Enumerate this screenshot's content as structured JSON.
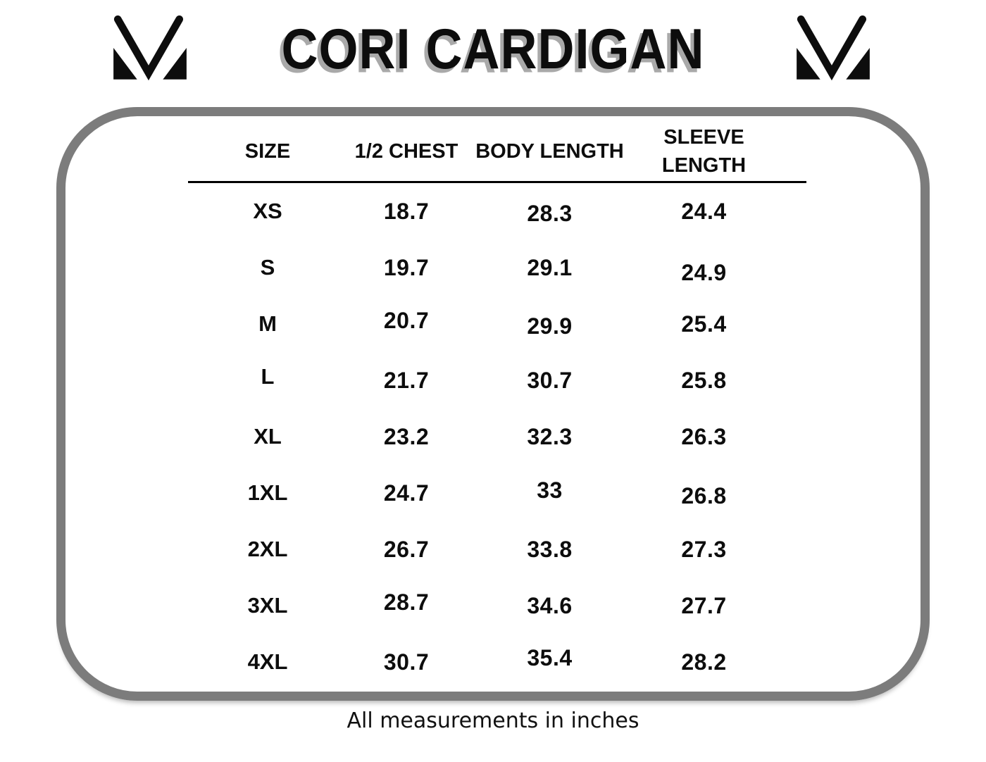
{
  "header": {
    "title": "CORI CARDIGAN"
  },
  "footer": {
    "note": "All measurements in inches"
  },
  "icons": {
    "brand_logo": "m-logo-icon"
  },
  "colors": {
    "frame": "#7c7c7c",
    "text": "#0d0d0d",
    "title_shadow": "#a9a9a9",
    "background": "#ffffff"
  },
  "chart_data": {
    "type": "table",
    "title": "CORI CARDIGAN",
    "columns": [
      "SIZE",
      "1/2 CHEST",
      "BODY LENGTH",
      "SLEEVE LENGTH"
    ],
    "rows": [
      [
        "XS",
        "18.7",
        "28.3",
        "24.4"
      ],
      [
        "S",
        "19.7",
        "29.1",
        "24.9"
      ],
      [
        "M",
        "20.7",
        "29.9",
        "25.4"
      ],
      [
        "L",
        "21.7",
        "30.7",
        "25.8"
      ],
      [
        "XL",
        "23.2",
        "32.3",
        "26.3"
      ],
      [
        "1XL",
        "24.7",
        "33",
        "26.8"
      ],
      [
        "2XL",
        "26.7",
        "33.8",
        "27.3"
      ],
      [
        "3XL",
        "28.7",
        "34.6",
        "27.7"
      ],
      [
        "4XL",
        "30.7",
        "35.4",
        "28.2"
      ]
    ],
    "footnote": "All measurements in inches",
    "units": "inches",
    "layout": {
      "grid": false,
      "header_rule": true
    }
  }
}
